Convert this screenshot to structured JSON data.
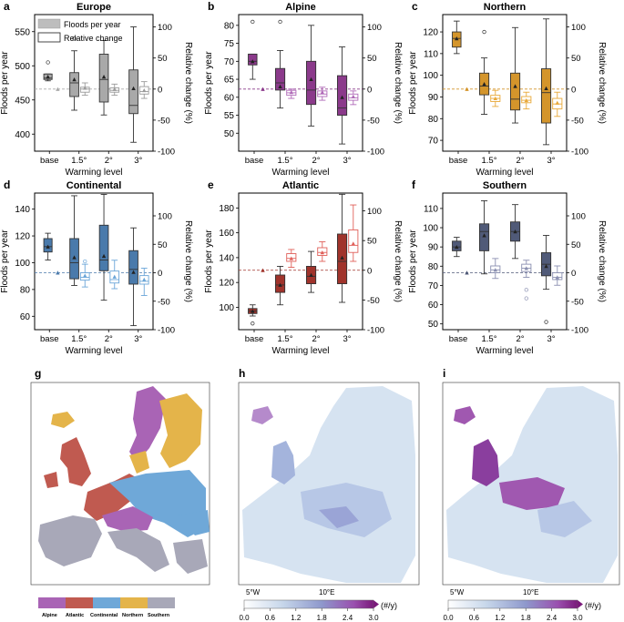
{
  "colors": {
    "europe": "#a9a9a9",
    "alpine": "#8b3a8b",
    "northern": "#d4952b",
    "continental": "#4a7aab",
    "atlantic": "#a0332b",
    "southern": "#505a78",
    "relative_edge_europe": "#9a9a9a",
    "relative_edge_alpine": "#b06ab8",
    "relative_edge_northern": "#e8a838",
    "relative_edge_continental": "#6aa5d8",
    "relative_edge_atlantic": "#e0605a",
    "relative_edge_southern": "#8a8fb0"
  },
  "legend": {
    "abs": "Floods per year",
    "rel": "Relative change"
  },
  "chart_data": [
    {
      "panel": "a",
      "title": "Europe",
      "type": "box",
      "color": "#a9a9a9",
      "relcolor": "#9a9a9a",
      "categories": [
        "base",
        "1.5°",
        "2°",
        "3°"
      ],
      "xlabel": "Warming level",
      "ylabel": "Floods per year",
      "y2label": "Relative change (%)",
      "ylim": [
        375,
        575
      ],
      "yticks": [
        400,
        450,
        500,
        550
      ],
      "y2lim": [
        -100,
        120
      ],
      "y2ticks": [
        -100,
        -50,
        0,
        50,
        100
      ],
      "base": {
        "q1": 480,
        "med": 482,
        "q3": 488,
        "lo": 478,
        "hi": 488,
        "mean": 484,
        "out": [
          505
        ]
      },
      "abs": [
        {
          "q1": 455,
          "med": 475,
          "q3": 490,
          "lo": 435,
          "hi": 522,
          "mean": 480,
          "out": [
            540
          ]
        },
        {
          "q1": 447,
          "med": 480,
          "q3": 517,
          "lo": 428,
          "hi": 537,
          "mean": 484,
          "out": []
        },
        {
          "q1": 430,
          "med": 442,
          "q3": 494,
          "lo": 388,
          "hi": 557,
          "mean": 467,
          "out": []
        }
      ],
      "rel": [
        {
          "q1": -5,
          "med": 0,
          "q3": 3,
          "lo": -10,
          "hi": 10,
          "mean": 2,
          "out": []
        },
        {
          "q1": -5,
          "med": -2,
          "q3": 2,
          "lo": -10,
          "hi": 8,
          "mean": 0,
          "out": []
        },
        {
          "q1": -8,
          "med": -4,
          "q3": 4,
          "lo": -15,
          "hi": 12,
          "mean": -2,
          "out": []
        }
      ]
    },
    {
      "panel": "b",
      "title": "Alpine",
      "type": "box",
      "color": "#8b3a8b",
      "relcolor": "#b06ab8",
      "categories": [
        "base",
        "1.5°",
        "2°",
        "3°"
      ],
      "xlabel": "Warming level",
      "ylabel": "Floods per year",
      "y2label": "Relative change (%)",
      "ylim": [
        45,
        83
      ],
      "yticks": [
        50,
        55,
        60,
        65,
        70,
        75,
        80
      ],
      "y2lim": [
        -100,
        120
      ],
      "y2ticks": [
        -100,
        -50,
        0,
        50,
        100
      ],
      "base": {
        "q1": 69,
        "med": 70,
        "q3": 72,
        "lo": 65,
        "hi": 72,
        "mean": 70,
        "out": [
          81
        ]
      },
      "abs": [
        {
          "q1": 62,
          "med": 64,
          "q3": 68,
          "lo": 57,
          "hi": 73,
          "mean": 63,
          "out": [
            81
          ]
        },
        {
          "q1": 58,
          "med": 62,
          "q3": 70,
          "lo": 52,
          "hi": 80,
          "mean": 65,
          "out": []
        },
        {
          "q1": 55,
          "med": 57,
          "q3": 66,
          "lo": 47,
          "hi": 74,
          "mean": 60,
          "out": []
        }
      ],
      "rel": [
        {
          "q1": -10,
          "med": -6,
          "q3": -2,
          "lo": -15,
          "hi": 0,
          "mean": -5,
          "out": []
        },
        {
          "q1": -12,
          "med": -8,
          "q3": -3,
          "lo": -18,
          "hi": 3,
          "mean": -5,
          "out": []
        },
        {
          "q1": -18,
          "med": -14,
          "q3": -8,
          "lo": -25,
          "hi": -3,
          "mean": -12,
          "out": []
        }
      ]
    },
    {
      "panel": "c",
      "title": "Northern",
      "type": "box",
      "color": "#d4952b",
      "relcolor": "#e8a838",
      "categories": [
        "base",
        "1.5°",
        "2°",
        "3°"
      ],
      "xlabel": "Warming level",
      "ylabel": "Floods per year",
      "y2label": "Relative change (%)",
      "ylim": [
        65,
        128
      ],
      "yticks": [
        70,
        80,
        90,
        100,
        110,
        120
      ],
      "y2lim": [
        -100,
        120
      ],
      "y2ticks": [
        -100,
        -50,
        0,
        50,
        100
      ],
      "base": {
        "q1": 113,
        "med": 117,
        "q3": 120,
        "lo": 110,
        "hi": 125,
        "mean": 117,
        "out": []
      },
      "abs": [
        {
          "q1": 91,
          "med": 95,
          "q3": 101,
          "lo": 82,
          "hi": 108,
          "mean": 96,
          "out": [
            120
          ]
        },
        {
          "q1": 84,
          "med": 89,
          "q3": 101,
          "lo": 78,
          "hi": 122,
          "mean": 95,
          "out": []
        },
        {
          "q1": 78,
          "med": 92,
          "q3": 103,
          "lo": 68,
          "hi": 126,
          "mean": 94,
          "out": []
        }
      ],
      "rel": [
        {
          "q1": -20,
          "med": -15,
          "q3": -10,
          "lo": -28,
          "hi": -2,
          "mean": -15,
          "out": []
        },
        {
          "q1": -22,
          "med": -18,
          "q3": -12,
          "lo": -32,
          "hi": -5,
          "mean": -18,
          "out": []
        },
        {
          "q1": -32,
          "med": -24,
          "q3": -15,
          "lo": -44,
          "hi": -5,
          "mean": -22,
          "out": []
        }
      ]
    },
    {
      "panel": "d",
      "title": "Continental",
      "type": "box",
      "color": "#4a7aab",
      "relcolor": "#6aa5d8",
      "categories": [
        "base",
        "1.5°",
        "2°",
        "3°"
      ],
      "xlabel": "Warming level",
      "ylabel": "Floods per year",
      "y2label": "Relative change (%)",
      "ylim": [
        50,
        152
      ],
      "yticks": [
        60,
        80,
        100,
        120,
        140
      ],
      "y2lim": [
        -100,
        140
      ],
      "y2ticks": [
        -100,
        -50,
        0,
        50,
        100
      ],
      "base": {
        "q1": 108,
        "med": 112,
        "q3": 118,
        "lo": 102,
        "hi": 122,
        "mean": 112,
        "out": []
      },
      "abs": [
        {
          "q1": 88,
          "med": 100,
          "q3": 118,
          "lo": 83,
          "hi": 150,
          "mean": 104,
          "out": []
        },
        {
          "q1": 94,
          "med": 102,
          "q3": 128,
          "lo": 72,
          "hi": 151,
          "mean": 105,
          "out": []
        },
        {
          "q1": 84,
          "med": 95,
          "q3": 109,
          "lo": 53,
          "hi": 126,
          "mean": 93,
          "out": []
        }
      ],
      "rel": [
        {
          "q1": -13,
          "med": -8,
          "q3": 0,
          "lo": -25,
          "hi": 15,
          "mean": -5,
          "out": [
            20
          ]
        },
        {
          "q1": -18,
          "med": -12,
          "q3": 3,
          "lo": -28,
          "hi": 22,
          "mean": -7,
          "out": []
        },
        {
          "q1": -20,
          "med": -15,
          "q3": -5,
          "lo": -40,
          "hi": 8,
          "mean": -12,
          "out": []
        }
      ]
    },
    {
      "panel": "e",
      "title": "Atlantic",
      "type": "box",
      "color": "#a0332b",
      "relcolor": "#e0605a",
      "categories": [
        "base",
        "1.5°",
        "2°",
        "3°"
      ],
      "xlabel": "Warming level",
      "ylabel": "Floods per year",
      "y2label": "Relative change (%)",
      "ylim": [
        82,
        192
      ],
      "yticks": [
        100,
        120,
        140,
        160,
        180
      ],
      "y2lim": [
        -100,
        130
      ],
      "y2ticks": [
        -100,
        -50,
        0,
        50,
        100
      ],
      "base": {
        "q1": 95,
        "med": 97,
        "q3": 99,
        "lo": 93,
        "hi": 102,
        "mean": 97,
        "out": [
          87
        ]
      },
      "abs": [
        {
          "q1": 112,
          "med": 118,
          "q3": 126,
          "lo": 102,
          "hi": 133,
          "mean": 118,
          "out": []
        },
        {
          "q1": 119,
          "med": 125,
          "q3": 133,
          "lo": 112,
          "hi": 145,
          "mean": 126,
          "out": []
        },
        {
          "q1": 119,
          "med": 137,
          "q3": 159,
          "lo": 104,
          "hi": 191,
          "mean": 140,
          "out": []
        }
      ],
      "rel": [
        {
          "q1": 15,
          "med": 20,
          "q3": 28,
          "lo": 5,
          "hi": 35,
          "mean": 20,
          "out": []
        },
        {
          "q1": 25,
          "med": 30,
          "q3": 38,
          "lo": 15,
          "hi": 48,
          "mean": 30,
          "out": []
        },
        {
          "q1": 30,
          "med": 42,
          "q3": 68,
          "lo": 15,
          "hi": 110,
          "mean": 45,
          "out": []
        }
      ]
    },
    {
      "panel": "f",
      "title": "Southern",
      "type": "box",
      "color": "#505a78",
      "relcolor": "#8a8fb0",
      "categories": [
        "base",
        "1.5°",
        "2°",
        "3°"
      ],
      "xlabel": "Warming level",
      "ylabel": "Floods per year",
      "y2label": "Relative change (%)",
      "ylim": [
        47,
        118
      ],
      "yticks": [
        50,
        60,
        70,
        80,
        90,
        100,
        110
      ],
      "y2lim": [
        -100,
        140
      ],
      "y2ticks": [
        -100,
        -50,
        0,
        50,
        100
      ],
      "base": {
        "q1": 88,
        "med": 90,
        "q3": 93,
        "lo": 85,
        "hi": 95,
        "mean": 90,
        "out": []
      },
      "abs": [
        {
          "q1": 88,
          "med": 98,
          "q3": 102,
          "lo": 76,
          "hi": 114,
          "mean": 96,
          "out": []
        },
        {
          "q1": 93,
          "med": 98,
          "q3": 103,
          "lo": 84,
          "hi": 112,
          "mean": 98,
          "out": []
        },
        {
          "q1": 75,
          "med": 81,
          "q3": 87,
          "lo": 68,
          "hi": 96,
          "mean": 80,
          "out": [
            51
          ]
        }
      ],
      "rel": [
        {
          "q1": 0,
          "med": 5,
          "q3": 12,
          "lo": -10,
          "hi": 25,
          "mean": 5,
          "out": []
        },
        {
          "q1": 2,
          "med": 8,
          "q3": 15,
          "lo": -8,
          "hi": 22,
          "mean": 8,
          "out": [
            -30,
            -45
          ]
        },
        {
          "q1": -12,
          "med": -8,
          "q3": 0,
          "lo": -22,
          "hi": 12,
          "mean": -8,
          "out": []
        }
      ]
    }
  ],
  "maps": {
    "g": {
      "label": "g",
      "legend": [
        "Alpine",
        "Atlantic",
        "Continental",
        "Northern",
        "Southern"
      ]
    },
    "h": {
      "label": "h",
      "ticks": [
        "0.0",
        "0.6",
        "1.2",
        "1.8",
        "2.4",
        "3.0"
      ],
      "unit": "(#/y)",
      "lon1": "5°W",
      "lon2": "10°E"
    },
    "i": {
      "label": "i",
      "ticks": [
        "0.0",
        "0.6",
        "1.2",
        "1.8",
        "2.4",
        "3.0"
      ],
      "unit": "(#/y)",
      "lon1": "5°W",
      "lon2": "10°E"
    }
  }
}
